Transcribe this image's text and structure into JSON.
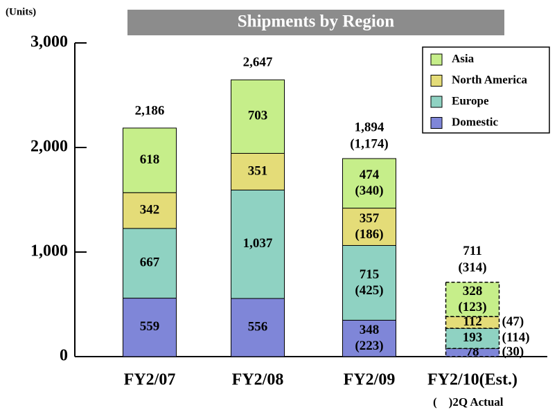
{
  "chart_data": {
    "type": "stacked_bar",
    "title": "Shipments by Region",
    "y_label": "(Units)",
    "note": "(　)2Q Actual",
    "categories": [
      "FY2/07",
      "FY2/08",
      "FY2/09",
      "FY2/10(Est.)"
    ],
    "dashed": [
      false,
      false,
      false,
      true
    ],
    "series": [
      {
        "name": "Domestic",
        "color": "#7f86d8",
        "values": [
          559,
          556,
          348,
          78
        ],
        "q2_actual": [
          null,
          null,
          223,
          30
        ],
        "q2_actual_labels": [
          null,
          null,
          "(223)",
          "(30)"
        ]
      },
      {
        "name": "Europe",
        "color": "#8fd2c2",
        "values": [
          667,
          1037,
          715,
          193
        ],
        "value_labels": [
          "667",
          "1,037",
          "715",
          "193"
        ],
        "q2_actual": [
          null,
          null,
          425,
          114
        ],
        "q2_actual_labels": [
          null,
          null,
          "(425)",
          "(114)"
        ]
      },
      {
        "name": "North America",
        "color": "#e4dc78",
        "values": [
          342,
          351,
          357,
          112
        ],
        "q2_actual": [
          null,
          null,
          186,
          47
        ],
        "q2_actual_labels": [
          null,
          null,
          "(186)",
          "(47)"
        ]
      },
      {
        "name": "Asia",
        "color": "#c6ee8a",
        "values": [
          618,
          703,
          474,
          328
        ],
        "q2_actual": [
          null,
          null,
          340,
          123
        ],
        "q2_actual_labels": [
          null,
          null,
          "(340)",
          "(123)"
        ]
      }
    ],
    "totals": [
      2186,
      2647,
      1894,
      711
    ],
    "total_labels": [
      "2,186",
      "2,647",
      "1,894",
      "711"
    ],
    "total_q2_actual": [
      null,
      null,
      1174,
      314
    ],
    "total_q2_actual_labels": [
      null,
      null,
      "(1,174)",
      "(314)"
    ],
    "ylim": [
      0,
      3000
    ],
    "yticks": [
      0,
      {
        "value": 1000,
        "label": "1,000"
      },
      {
        "value": 2000,
        "label": "2,000"
      },
      {
        "value": 3000,
        "label": "3,000"
      }
    ],
    "legend": "top-right"
  }
}
